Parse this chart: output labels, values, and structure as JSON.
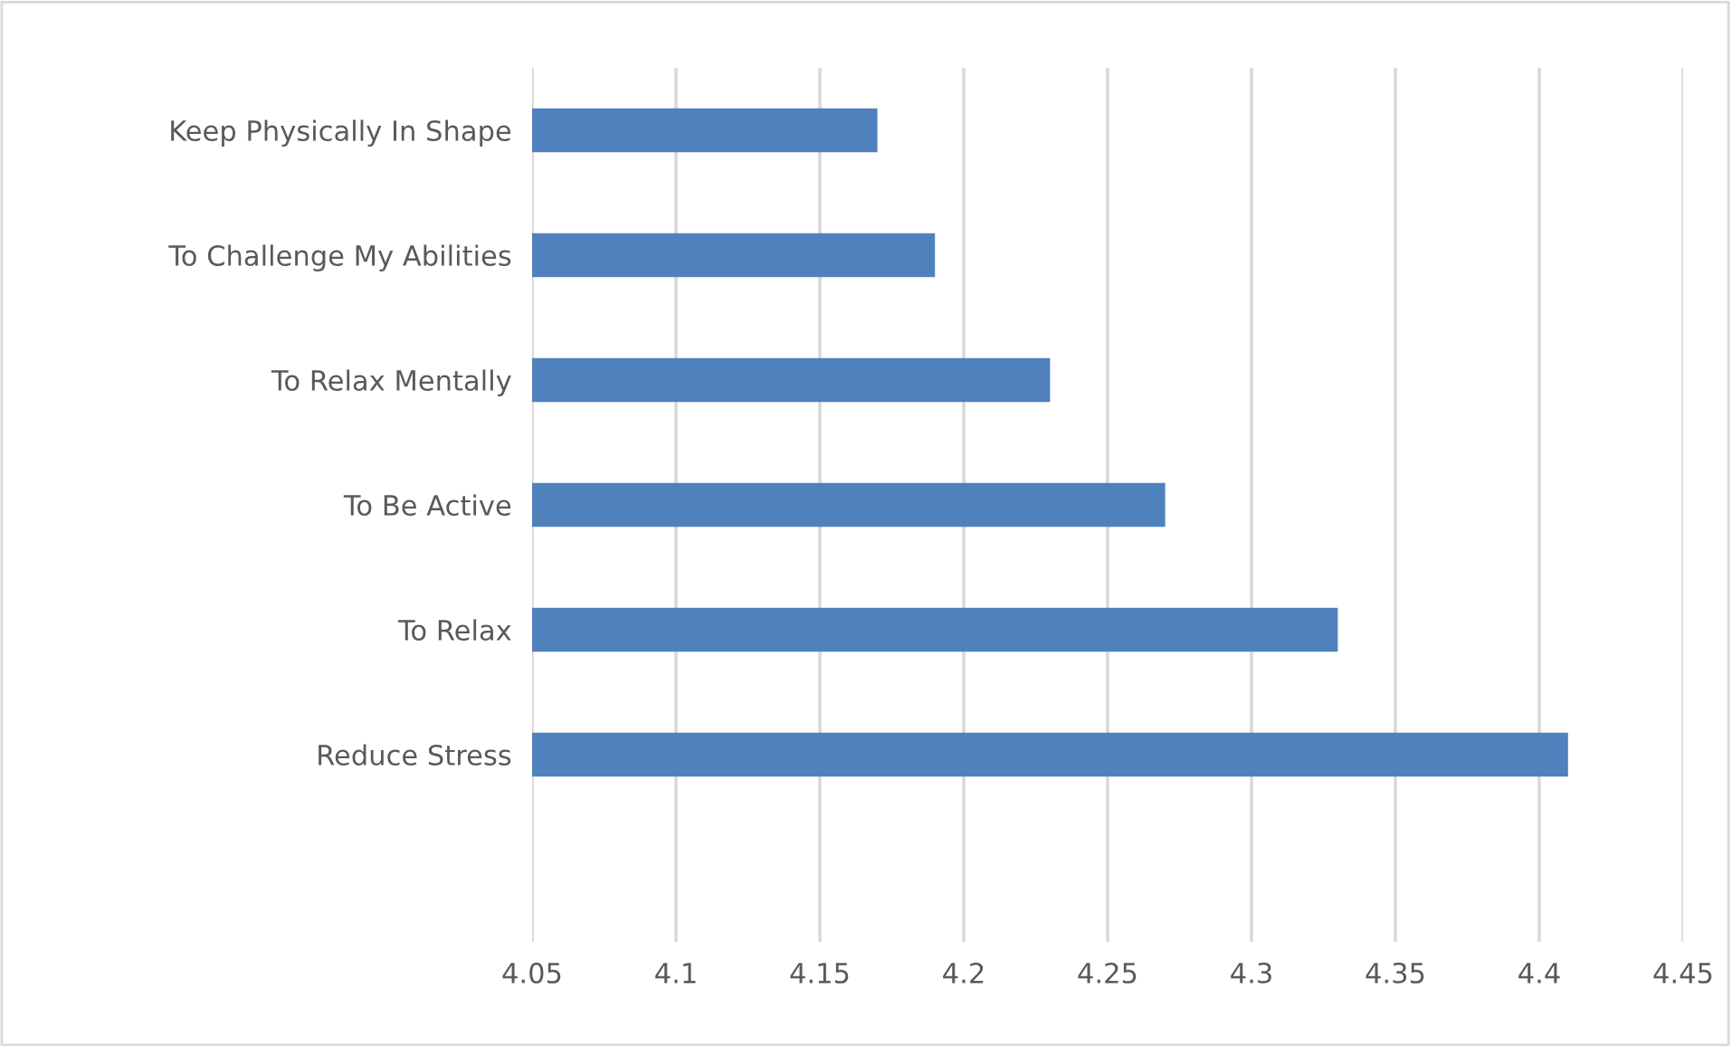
{
  "chart_data": {
    "type": "bar",
    "orientation": "horizontal",
    "categories": [
      "Keep Physically In Shape",
      "To Challenge My Abilities",
      "To Relax Mentally",
      "To Be Active",
      "To Relax",
      "Reduce Stress",
      null
    ],
    "series": [
      {
        "color": "#4f81bd",
        "values": [
          4.17,
          4.19,
          4.23,
          4.27,
          4.33,
          4.41,
          null
        ]
      }
    ],
    "xlim": [
      4.05,
      4.45
    ],
    "xticks": [
      4.05,
      4.1,
      4.15,
      4.2,
      4.25,
      4.3,
      4.35,
      4.4,
      4.45
    ],
    "grid": "x",
    "legend": false
  }
}
